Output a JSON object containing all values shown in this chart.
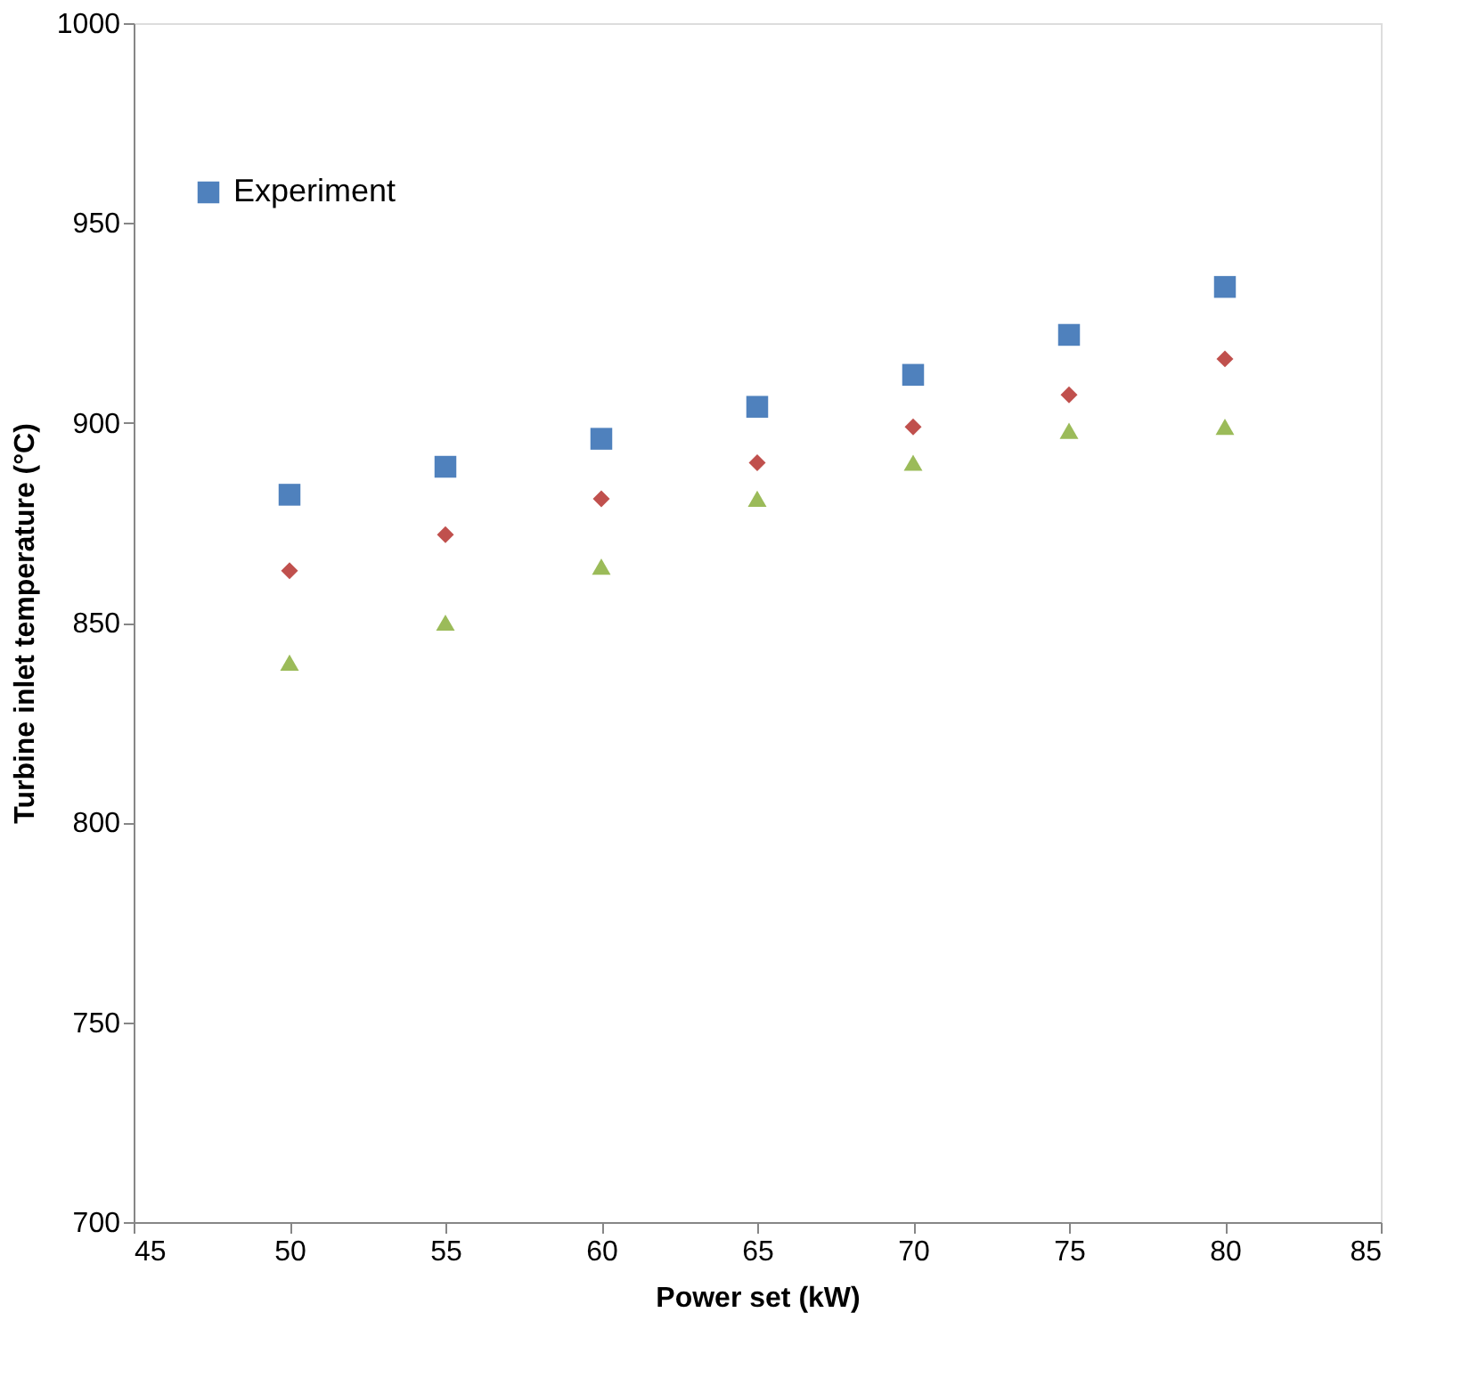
{
  "chart_data": {
    "type": "scatter",
    "xlabel": "Power set (kW)",
    "ylabel": "Turbine inlet temperature (°C)",
    "x": [
      50,
      55,
      60,
      65,
      70,
      75,
      80
    ],
    "series": [
      {
        "name": "Experiment",
        "color": "#4f81bd",
        "marker": "square",
        "values": [
          882,
          889,
          896,
          904,
          912,
          922,
          934
        ]
      },
      {
        "color": "#9bbb59",
        "marker": "triangle",
        "values": [
          840,
          850,
          864,
          881,
          890,
          898,
          899
        ]
      },
      {
        "color": "#c0504d",
        "marker": "diamond",
        "values": [
          863,
          872,
          881,
          890,
          899,
          907,
          916
        ]
      }
    ],
    "xlim": [
      45,
      85
    ],
    "xticks": [
      45,
      50,
      55,
      60,
      65,
      70,
      75,
      80,
      85
    ],
    "ylim": [
      700,
      1000
    ],
    "yticks": [
      700,
      750,
      800,
      850,
      900,
      950,
      1000
    ],
    "grid": false,
    "legend": "top left"
  }
}
